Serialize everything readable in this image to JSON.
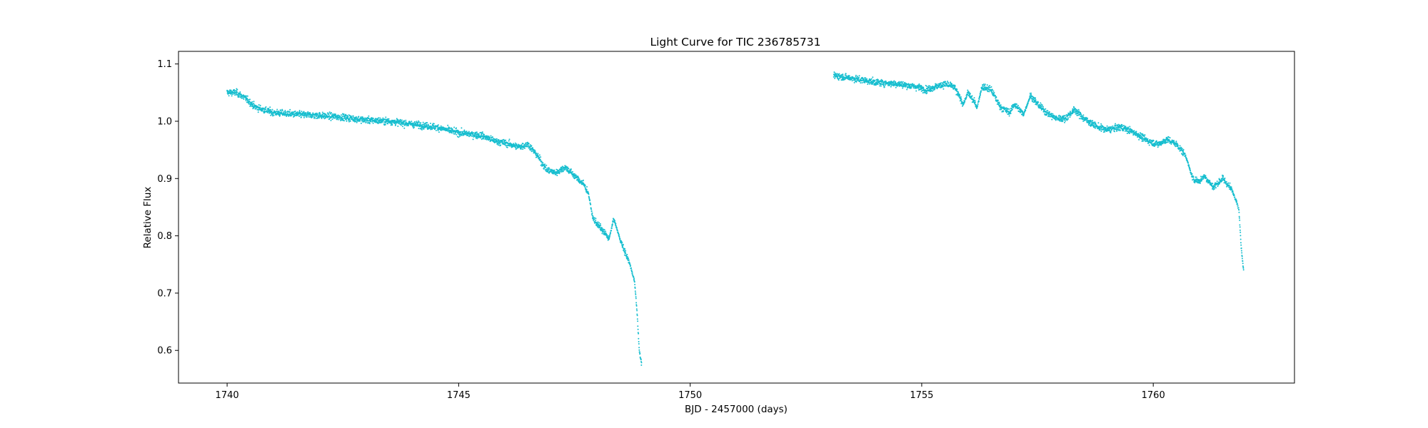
{
  "chart_data": {
    "type": "scatter",
    "title": "Light Curve for TIC 236785731",
    "xlabel": "BJD - 2457000 (days)",
    "ylabel": "Relative Flux",
    "xlim": [
      1738.95,
      1763.05
    ],
    "ylim": [
      0.543,
      1.122
    ],
    "xticks": [
      1740,
      1745,
      1750,
      1755,
      1760
    ],
    "yticks": [
      0.6,
      0.7,
      0.8,
      0.9,
      1.0,
      1.1
    ],
    "grid": false,
    "legend": "none",
    "marker_color": "#17becf",
    "series": [
      {
        "x": [
          1740.0,
          1740.2,
          1740.4,
          1740.6,
          1740.8,
          1741.0,
          1741.5,
          1742.0,
          1742.5,
          1743.0,
          1743.5,
          1744.0,
          1744.5,
          1745.0,
          1745.5,
          1745.8,
          1746.0,
          1746.3,
          1746.5,
          1746.7,
          1746.9,
          1747.1,
          1747.3,
          1747.5,
          1747.7,
          1747.8,
          1747.9,
          1748.0,
          1748.1,
          1748.25,
          1748.35,
          1748.5,
          1748.7,
          1748.8,
          1748.85,
          1748.9,
          1748.95
        ],
        "y": [
          1.05,
          1.05,
          1.04,
          1.025,
          1.02,
          1.015,
          1.012,
          1.01,
          1.007,
          1.002,
          1.0,
          0.995,
          0.99,
          0.98,
          0.975,
          0.965,
          0.962,
          0.955,
          0.96,
          0.94,
          0.915,
          0.91,
          0.92,
          0.905,
          0.89,
          0.875,
          0.83,
          0.82,
          0.81,
          0.795,
          0.83,
          0.79,
          0.75,
          0.72,
          0.67,
          0.6,
          0.575
        ]
      },
      {
        "x": [
          1753.1,
          1753.5,
          1754.0,
          1754.5,
          1754.9,
          1755.1,
          1755.3,
          1755.5,
          1755.7,
          1755.9,
          1756.0,
          1756.2,
          1756.3,
          1756.5,
          1756.7,
          1756.9,
          1757.0,
          1757.2,
          1757.35,
          1757.5,
          1757.7,
          1757.9,
          1758.1,
          1758.3,
          1758.5,
          1758.8,
          1759.0,
          1759.3,
          1759.6,
          1759.9,
          1760.1,
          1760.3,
          1760.5,
          1760.7,
          1760.85,
          1761.0,
          1761.1,
          1761.3,
          1761.5,
          1761.7,
          1761.8,
          1761.85,
          1761.9,
          1761.95
        ],
        "y": [
          1.08,
          1.075,
          1.068,
          1.065,
          1.06,
          1.055,
          1.06,
          1.065,
          1.06,
          1.03,
          1.05,
          1.025,
          1.06,
          1.055,
          1.025,
          1.015,
          1.03,
          1.012,
          1.045,
          1.03,
          1.015,
          1.005,
          1.005,
          1.02,
          1.005,
          0.99,
          0.985,
          0.99,
          0.98,
          0.965,
          0.96,
          0.968,
          0.96,
          0.94,
          0.9,
          0.895,
          0.905,
          0.885,
          0.9,
          0.88,
          0.86,
          0.845,
          0.78,
          0.74
        ]
      }
    ]
  }
}
